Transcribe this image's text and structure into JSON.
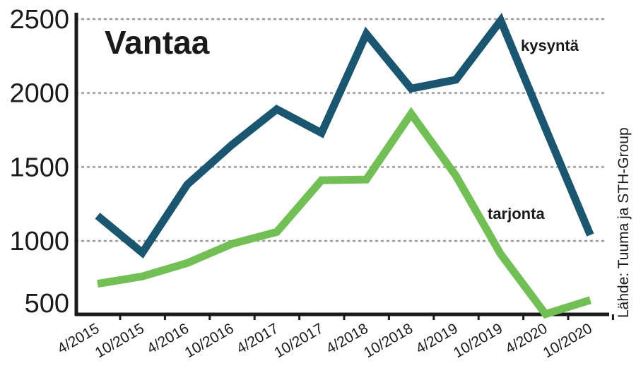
{
  "chart_data": {
    "type": "line",
    "title": "Vantaa",
    "xlabel": "",
    "ylabel": "",
    "categories": [
      "4/2015",
      "10/2015",
      "4/2016",
      "10/2016",
      "4/2017",
      "10/2017",
      "4/2018",
      "10/2018",
      "4/2019",
      "10/2019",
      "4/2020",
      "10/2020"
    ],
    "yticks": [
      500,
      1000,
      1500,
      2000,
      2500
    ],
    "ylim": [
      550,
      2500
    ],
    "grid": true,
    "series": [
      {
        "name": "kysyntä",
        "color": "#1b5670",
        "values": [
          1170,
          920,
          1380,
          1650,
          1890,
          1730,
          2400,
          2030,
          2090,
          2490,
          1760,
          1040
        ]
      },
      {
        "name": "tarjonta",
        "color": "#72bf55",
        "values": [
          710,
          760,
          850,
          980,
          1060,
          1410,
          1415,
          1860,
          1440,
          910,
          505,
          600
        ]
      }
    ],
    "source": "Lähde: Tuuma ja STH-Group"
  }
}
